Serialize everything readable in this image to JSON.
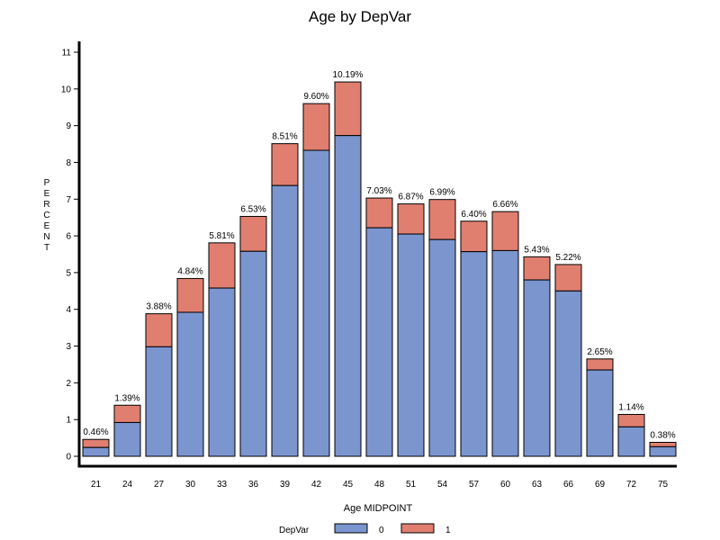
{
  "chart_data": {
    "type": "bar",
    "stacked": true,
    "title": "Age by DepVar",
    "xlabel": "Age MIDPOINT",
    "ylabel": "PERCENT",
    "ylim": [
      0,
      11
    ],
    "yticks": [
      0,
      1,
      2,
      3,
      4,
      5,
      6,
      7,
      8,
      9,
      10,
      11
    ],
    "categories": [
      "21",
      "24",
      "27",
      "30",
      "33",
      "36",
      "39",
      "42",
      "45",
      "48",
      "51",
      "54",
      "57",
      "60",
      "63",
      "66",
      "69",
      "72",
      "75"
    ],
    "series": [
      {
        "name": "0",
        "color": "#7b95cf",
        "values": [
          0.24,
          0.92,
          2.98,
          3.92,
          4.58,
          5.58,
          7.37,
          8.33,
          8.73,
          6.22,
          6.05,
          5.9,
          5.57,
          5.6,
          4.8,
          4.5,
          2.35,
          0.8,
          0.26
        ]
      },
      {
        "name": "1",
        "color": "#e07f70",
        "values": [
          0.22,
          0.47,
          0.9,
          0.92,
          1.23,
          0.95,
          1.14,
          1.27,
          1.46,
          0.81,
          0.82,
          1.09,
          0.83,
          1.06,
          0.63,
          0.72,
          0.3,
          0.34,
          0.12
        ]
      }
    ],
    "totals": [
      0.46,
      1.39,
      3.88,
      4.84,
      5.81,
      6.53,
      8.51,
      9.6,
      10.19,
      7.03,
      6.87,
      6.99,
      6.4,
      6.66,
      5.43,
      5.22,
      2.65,
      1.14,
      0.38
    ],
    "total_labels": [
      "0.46%",
      "1.39%",
      "3.88%",
      "4.84%",
      "5.81%",
      "6.53%",
      "8.51%",
      "9.60%",
      "10.19%",
      "7.03%",
      "6.87%",
      "6.99%",
      "6.40%",
      "6.66%",
      "5.43%",
      "5.22%",
      "2.65%",
      "1.14%",
      "0.38%"
    ],
    "legend": {
      "title": "DepVar",
      "position": "bottom"
    },
    "grid": false
  }
}
